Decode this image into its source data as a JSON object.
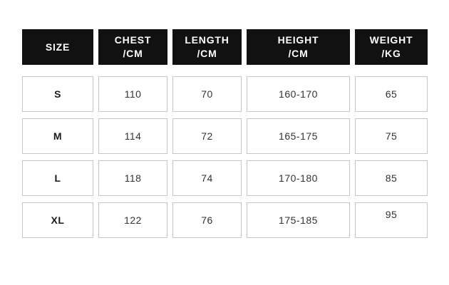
{
  "table": {
    "headers": [
      {
        "line1": "SIZE",
        "line2": ""
      },
      {
        "line1": "CHEST",
        "line2": "/CM"
      },
      {
        "line1": "LENGTH",
        "line2": "/CM"
      },
      {
        "line1": "HEIGHT",
        "line2": "/CM"
      },
      {
        "line1": "WEIGHT",
        "line2": "/KG"
      }
    ],
    "rows": [
      {
        "size": "S",
        "chest": "110",
        "length": "70",
        "height": "160-170",
        "weight": "65"
      },
      {
        "size": "M",
        "chest": "114",
        "length": "72",
        "height": "165-175",
        "weight": "75"
      },
      {
        "size": "L",
        "chest": "118",
        "length": "74",
        "height": "170-180",
        "weight": "85"
      },
      {
        "size": "XL",
        "chest": "122",
        "length": "76",
        "height": "175-185",
        "weight": "95"
      }
    ]
  },
  "chart_data": {
    "type": "table",
    "columns": [
      "SIZE",
      "CHEST /CM",
      "LENGTH /CM",
      "HEIGHT /CM",
      "WEIGHT /KG"
    ],
    "rows": [
      [
        "S",
        "110",
        "70",
        "160-170",
        "65"
      ],
      [
        "M",
        "114",
        "72",
        "165-175",
        "75"
      ],
      [
        "L",
        "118",
        "74",
        "170-180",
        "85"
      ],
      [
        "XL",
        "122",
        "76",
        "175-185",
        "95"
      ]
    ],
    "title": "",
    "layout": "size-chart grid of separated cells, black header row, white bordered body cells"
  },
  "colors": {
    "header_bg": "#111111",
    "header_text": "#ffffff",
    "cell_border": "#c5c5c5",
    "cell_text": "#333333",
    "page_bg": "#ffffff"
  }
}
